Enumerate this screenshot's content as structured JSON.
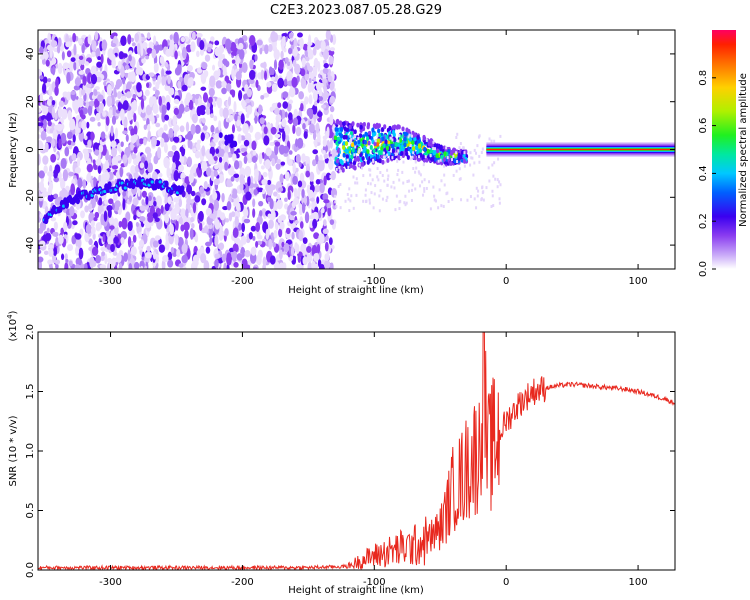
{
  "title": "C2E3.2023.087.05.28.G29",
  "chart_data": [
    {
      "type": "heatmap",
      "xlabel": "Height of straight line (km)",
      "ylabel": "Frequency (Hz)",
      "xlim": [
        -355,
        128
      ],
      "ylim": [
        -50,
        50
      ],
      "xticks": [
        -300,
        -200,
        -100,
        0,
        100
      ],
      "yticks": [
        -40,
        -20,
        0,
        20,
        40
      ],
      "colorbar": {
        "label": "Normalized spectral amplitude",
        "range": [
          0,
          1
        ],
        "ticks": [
          "0.0",
          "0.2",
          "0.4",
          "0.6",
          "0.8"
        ],
        "colors": [
          "#ffffff",
          "#c8a8f8",
          "#8a3cf0",
          "#3a00f0",
          "#0060ff",
          "#00c8ff",
          "#00e8a0",
          "#20f020",
          "#b0f000",
          "#ffd000",
          "#ff7000",
          "#ff2000",
          "#ff0060"
        ]
      },
      "features": [
        {
          "name": "noise",
          "x_range": [
            -355,
            -130
          ],
          "freq_range": [
            -50,
            48
          ]
        },
        {
          "name": "arc",
          "points": [
            [
              -350,
              -29
            ],
            [
              -330,
              -21
            ],
            [
              -300,
              -16
            ],
            [
              -280,
              -14
            ],
            [
              -260,
              -15
            ],
            [
              -245,
              -18
            ]
          ]
        },
        {
          "name": "patch",
          "points": [
            [
              -218,
              6
            ],
            [
              -205,
              3
            ]
          ]
        },
        {
          "name": "transition",
          "points": [
            [
              -130,
              1
            ],
            [
              -100,
              2
            ],
            [
              -80,
              3
            ],
            [
              -60,
              0
            ],
            [
              -45,
              -3
            ],
            [
              -30,
              -3
            ]
          ]
        },
        {
          "name": "carrier",
          "points": [
            [
              -15,
              0
            ],
            [
              0,
              0
            ],
            [
              50,
              0
            ],
            [
              100,
              0
            ],
            [
              128,
              0
            ]
          ]
        }
      ]
    },
    {
      "type": "line",
      "xlabel": "Height of straight line (km)",
      "ylabel": "SNR (10 * v/v)",
      "yscale_label": "(x10^4)",
      "xlim": [
        -355,
        128
      ],
      "ylim": [
        0,
        2.0
      ],
      "xticks": [
        -300,
        -200,
        -100,
        0,
        100
      ],
      "yticks": [
        0.0,
        0.5,
        1.0,
        1.5,
        2.0
      ],
      "series": [
        {
          "color": "#e8281e",
          "x": [
            -355,
            -300,
            -250,
            -200,
            -150,
            -120,
            -110,
            -100,
            -90,
            -80,
            -70,
            -60,
            -50,
            -45,
            -40,
            -35,
            -30,
            -25,
            -20,
            -17,
            -15,
            -10,
            -5,
            0,
            10,
            20,
            30,
            40,
            50,
            60,
            70,
            80,
            90,
            100,
            110,
            120,
            128
          ],
          "y": [
            0.02,
            0.02,
            0.02,
            0.02,
            0.02,
            0.03,
            0.08,
            0.12,
            0.15,
            0.18,
            0.2,
            0.25,
            0.35,
            0.5,
            0.7,
            0.75,
            0.85,
            0.95,
            1.0,
            2.0,
            0.95,
            1.05,
            1.15,
            1.25,
            1.4,
            1.5,
            1.53,
            1.55,
            1.56,
            1.55,
            1.54,
            1.53,
            1.52,
            1.5,
            1.47,
            1.44,
            1.4
          ]
        }
      ],
      "annotations": [
        {
          "x": -17,
          "y": 2.0,
          "text": "spike"
        }
      ]
    }
  ]
}
